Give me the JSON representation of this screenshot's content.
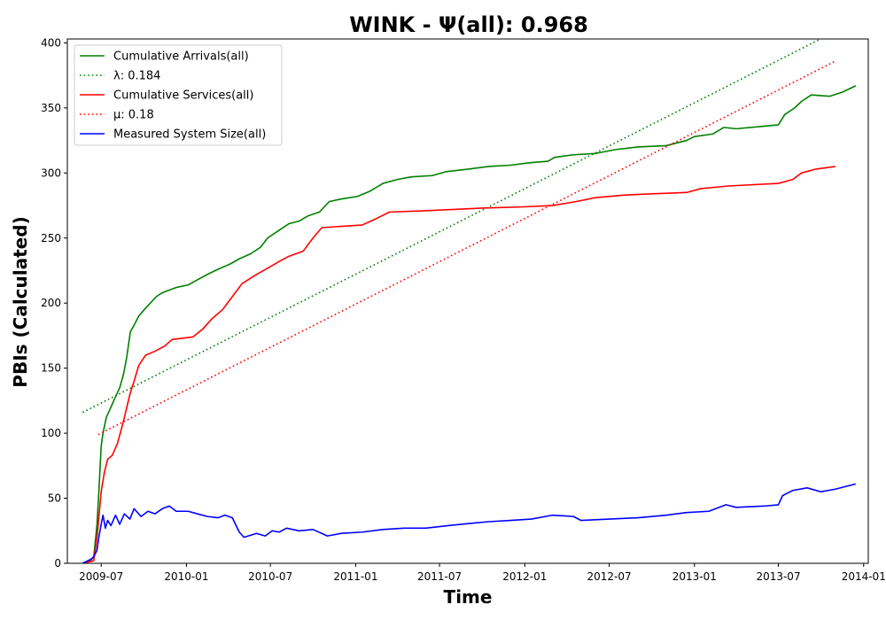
{
  "chart_data": {
    "type": "line",
    "title": "WINK -  Ψ(all): 0.968",
    "xlabel": "Time",
    "ylabel": "PBIs (Calculated)",
    "xlim": [
      "2009-04-19",
      "2014-01-11"
    ],
    "ylim": [
      0,
      403
    ],
    "x_ticks": [
      "2009-07",
      "2010-01",
      "2010-07",
      "2011-01",
      "2011-07",
      "2012-01",
      "2012-07",
      "2013-01",
      "2013-07",
      "2014-01"
    ],
    "y_ticks": [
      0,
      50,
      100,
      150,
      200,
      250,
      300,
      350,
      400
    ],
    "grid": false,
    "legend_position": "top-left",
    "series": [
      {
        "name": "Cumulative Arrivals(all)",
        "color": "#008000",
        "style": "solid",
        "points": [
          [
            "2009-05-22",
            0
          ],
          [
            "2009-06-08",
            2
          ],
          [
            "2009-06-15",
            5
          ],
          [
            "2009-06-22",
            30
          ],
          [
            "2009-06-26",
            55
          ],
          [
            "2009-07-01",
            90
          ],
          [
            "2009-07-05",
            100
          ],
          [
            "2009-07-12",
            112
          ],
          [
            "2009-07-22",
            120
          ],
          [
            "2009-08-01",
            128
          ],
          [
            "2009-08-10",
            135
          ],
          [
            "2009-08-18",
            145
          ],
          [
            "2009-08-25",
            158
          ],
          [
            "2009-09-02",
            178
          ],
          [
            "2009-09-10",
            183
          ],
          [
            "2009-09-20",
            190
          ],
          [
            "2009-10-02",
            195
          ],
          [
            "2009-10-15",
            200
          ],
          [
            "2009-10-28",
            205
          ],
          [
            "2009-11-10",
            208
          ],
          [
            "2009-11-25",
            210
          ],
          [
            "2009-12-10",
            212
          ],
          [
            "2010-01-05",
            214
          ],
          [
            "2010-01-25",
            218
          ],
          [
            "2010-02-15",
            222
          ],
          [
            "2010-03-10",
            226
          ],
          [
            "2010-04-05",
            230
          ],
          [
            "2010-04-25",
            234
          ],
          [
            "2010-05-20",
            238
          ],
          [
            "2010-06-10",
            243
          ],
          [
            "2010-06-25",
            250
          ],
          [
            "2010-07-20",
            256
          ],
          [
            "2010-08-10",
            261
          ],
          [
            "2010-09-01",
            263
          ],
          [
            "2010-09-20",
            267
          ],
          [
            "2010-10-15",
            270
          ],
          [
            "2010-11-05",
            278
          ],
          [
            "2010-12-01",
            280
          ],
          [
            "2011-01-05",
            282
          ],
          [
            "2011-02-01",
            286
          ],
          [
            "2011-03-01",
            292
          ],
          [
            "2011-04-01",
            295
          ],
          [
            "2011-05-01",
            297
          ],
          [
            "2011-06-15",
            298
          ],
          [
            "2011-07-15",
            301
          ],
          [
            "2011-09-01",
            303
          ],
          [
            "2011-10-15",
            305
          ],
          [
            "2011-12-01",
            306
          ],
          [
            "2012-01-15",
            308
          ],
          [
            "2012-02-20",
            309
          ],
          [
            "2012-03-05",
            312
          ],
          [
            "2012-04-15",
            314
          ],
          [
            "2012-06-01",
            315
          ],
          [
            "2012-07-15",
            318
          ],
          [
            "2012-09-01",
            320
          ],
          [
            "2012-11-01",
            321
          ],
          [
            "2012-12-15",
            325
          ],
          [
            "2013-01-01",
            328
          ],
          [
            "2013-02-10",
            330
          ],
          [
            "2013-03-05",
            335
          ],
          [
            "2013-04-01",
            334
          ],
          [
            "2013-06-01",
            336
          ],
          [
            "2013-07-01",
            337
          ],
          [
            "2013-07-15",
            345
          ],
          [
            "2013-08-05",
            350
          ],
          [
            "2013-08-20",
            355
          ],
          [
            "2013-09-10",
            360
          ],
          [
            "2013-10-20",
            359
          ],
          [
            "2013-11-15",
            362
          ],
          [
            "2013-12-15",
            367
          ]
        ]
      },
      {
        "name": "λ: 0.184",
        "color": "#008000",
        "style": "dotted",
        "points": [
          [
            "2009-05-22",
            116
          ],
          [
            "2013-09-30",
            403
          ]
        ]
      },
      {
        "name": "Cumulative Services(all)",
        "color": "#ff0000",
        "style": "solid",
        "points": [
          [
            "2009-05-22",
            0
          ],
          [
            "2009-06-15",
            2
          ],
          [
            "2009-06-22",
            20
          ],
          [
            "2009-07-01",
            55
          ],
          [
            "2009-07-08",
            70
          ],
          [
            "2009-07-15",
            80
          ],
          [
            "2009-07-25",
            83
          ],
          [
            "2009-08-05",
            92
          ],
          [
            "2009-08-15",
            105
          ],
          [
            "2009-08-22",
            115
          ],
          [
            "2009-09-01",
            130
          ],
          [
            "2009-09-10",
            140
          ],
          [
            "2009-09-20",
            152
          ],
          [
            "2009-10-05",
            160
          ],
          [
            "2009-10-25",
            163
          ],
          [
            "2009-11-15",
            167
          ],
          [
            "2009-12-01",
            172
          ],
          [
            "2010-01-15",
            174
          ],
          [
            "2010-02-05",
            180
          ],
          [
            "2010-02-25",
            188
          ],
          [
            "2010-03-20",
            195
          ],
          [
            "2010-04-10",
            205
          ],
          [
            "2010-05-01",
            215
          ],
          [
            "2010-06-01",
            222
          ],
          [
            "2010-07-01",
            228
          ],
          [
            "2010-07-20",
            232
          ],
          [
            "2010-08-10",
            236
          ],
          [
            "2010-09-10",
            240
          ],
          [
            "2010-10-01",
            250
          ],
          [
            "2010-10-20",
            258
          ],
          [
            "2010-12-01",
            259
          ],
          [
            "2011-01-15",
            260
          ],
          [
            "2011-02-15",
            265
          ],
          [
            "2011-03-15",
            270
          ],
          [
            "2011-06-01",
            271
          ],
          [
            "2011-08-01",
            272
          ],
          [
            "2011-10-01",
            273
          ],
          [
            "2012-01-01",
            274
          ],
          [
            "2012-03-01",
            275
          ],
          [
            "2012-04-20",
            278
          ],
          [
            "2012-06-01",
            281
          ],
          [
            "2012-08-01",
            283
          ],
          [
            "2012-10-01",
            284
          ],
          [
            "2012-12-15",
            285
          ],
          [
            "2013-01-15",
            288
          ],
          [
            "2013-03-15",
            290
          ],
          [
            "2013-07-01",
            292
          ],
          [
            "2013-08-01",
            295
          ],
          [
            "2013-08-20",
            300
          ],
          [
            "2013-09-20",
            303
          ],
          [
            "2013-11-01",
            305
          ]
        ]
      },
      {
        "name": "μ: 0.18",
        "color": "#ff0000",
        "style": "dotted",
        "points": [
          [
            "2009-06-25",
            99
          ],
          [
            "2013-11-01",
            386
          ]
        ]
      },
      {
        "name": "Measured System Size(all)",
        "color": "#0000ff",
        "style": "solid",
        "points": [
          [
            "2009-05-22",
            0
          ],
          [
            "2009-06-08",
            3
          ],
          [
            "2009-06-15",
            5
          ],
          [
            "2009-06-22",
            10
          ],
          [
            "2009-06-26",
            20
          ],
          [
            "2009-07-01",
            30
          ],
          [
            "2009-07-05",
            37
          ],
          [
            "2009-07-10",
            27
          ],
          [
            "2009-07-15",
            33
          ],
          [
            "2009-07-22",
            29
          ],
          [
            "2009-08-01",
            37
          ],
          [
            "2009-08-10",
            30
          ],
          [
            "2009-08-20",
            38
          ],
          [
            "2009-09-01",
            34
          ],
          [
            "2009-09-10",
            42
          ],
          [
            "2009-09-25",
            36
          ],
          [
            "2009-10-10",
            40
          ],
          [
            "2009-10-25",
            38
          ],
          [
            "2009-11-10",
            42
          ],
          [
            "2009-11-25",
            44
          ],
          [
            "2009-12-10",
            40
          ],
          [
            "2010-01-05",
            40
          ],
          [
            "2010-01-25",
            38
          ],
          [
            "2010-02-15",
            36
          ],
          [
            "2010-03-10",
            35
          ],
          [
            "2010-03-25",
            37
          ],
          [
            "2010-04-10",
            35
          ],
          [
            "2010-04-25",
            24
          ],
          [
            "2010-05-05",
            20
          ],
          [
            "2010-06-01",
            23
          ],
          [
            "2010-06-20",
            21
          ],
          [
            "2010-07-05",
            25
          ],
          [
            "2010-07-20",
            24
          ],
          [
            "2010-08-05",
            27
          ],
          [
            "2010-09-01",
            25
          ],
          [
            "2010-10-01",
            26
          ],
          [
            "2010-11-01",
            21
          ],
          [
            "2010-12-01",
            23
          ],
          [
            "2011-01-15",
            24
          ],
          [
            "2011-03-01",
            26
          ],
          [
            "2011-04-15",
            27
          ],
          [
            "2011-06-01",
            27
          ],
          [
            "2011-07-20",
            29
          ],
          [
            "2011-09-15",
            31
          ],
          [
            "2011-10-15",
            32
          ],
          [
            "2011-12-01",
            33
          ],
          [
            "2012-01-15",
            34
          ],
          [
            "2012-03-01",
            37
          ],
          [
            "2012-04-15",
            36
          ],
          [
            "2012-05-01",
            33
          ],
          [
            "2012-07-01",
            34
          ],
          [
            "2012-09-01",
            35
          ],
          [
            "2012-11-01",
            37
          ],
          [
            "2012-12-15",
            39
          ],
          [
            "2013-02-01",
            40
          ],
          [
            "2013-03-10",
            45
          ],
          [
            "2013-04-01",
            43
          ],
          [
            "2013-06-01",
            44
          ],
          [
            "2013-07-01",
            45
          ],
          [
            "2013-07-10",
            52
          ],
          [
            "2013-08-01",
            56
          ],
          [
            "2013-09-01",
            58
          ],
          [
            "2013-10-01",
            55
          ],
          [
            "2013-11-01",
            57
          ],
          [
            "2013-12-15",
            61
          ]
        ]
      }
    ]
  }
}
